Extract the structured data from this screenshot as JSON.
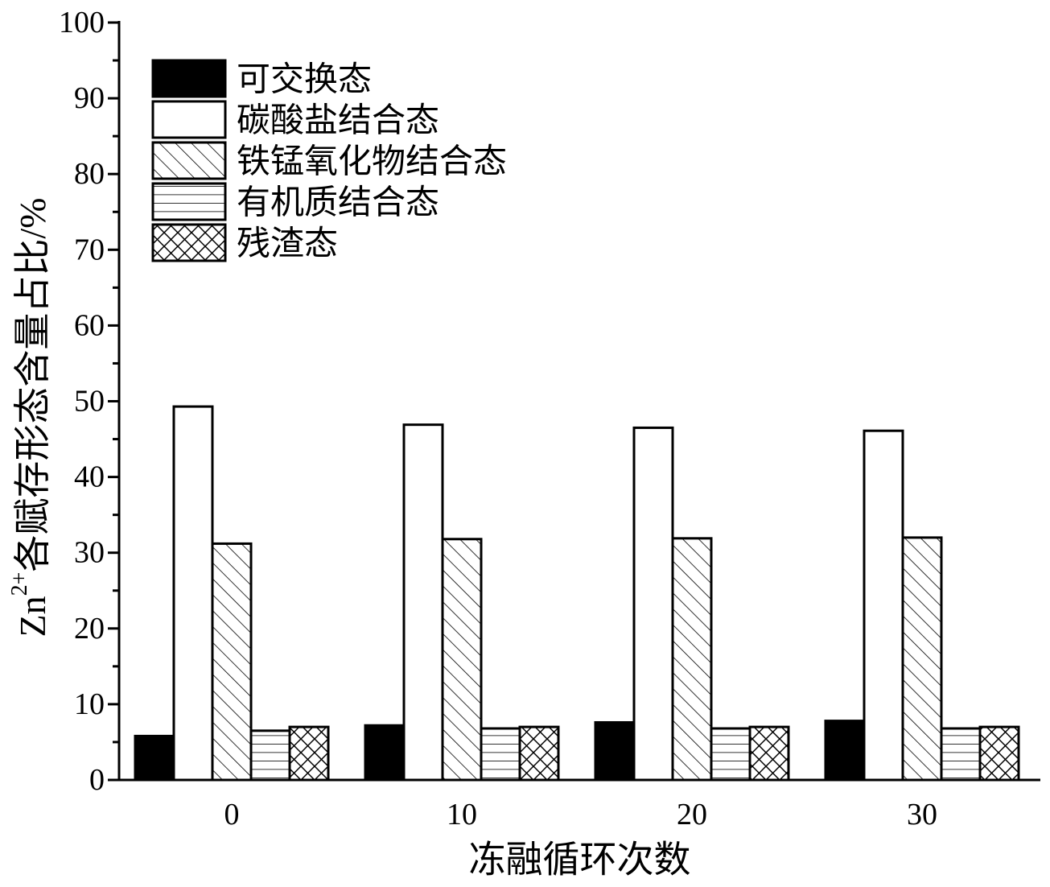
{
  "chart_data": {
    "type": "bar",
    "categories": [
      "0",
      "10",
      "20",
      "30"
    ],
    "series": [
      {
        "name": "可交换态",
        "pattern": "solid",
        "values": [
          5.8,
          7.2,
          7.6,
          7.8
        ]
      },
      {
        "name": "碳酸盐结合态",
        "pattern": "empty",
        "values": [
          49.3,
          46.9,
          46.5,
          46.1
        ]
      },
      {
        "name": "铁锰氧化物结合态",
        "pattern": "diagonal",
        "values": [
          31.2,
          31.8,
          31.9,
          32.0
        ]
      },
      {
        "name": "有机质结合态",
        "pattern": "horizontal",
        "values": [
          6.5,
          6.8,
          6.8,
          6.8
        ]
      },
      {
        "name": "残渣态",
        "pattern": "crosshatch",
        "values": [
          7.0,
          7.0,
          7.0,
          7.0
        ]
      }
    ],
    "xlabel": "冻融循环次数",
    "ylabel": {
      "prefix": "Zn",
      "sup": "2+",
      "suffix": "各赋存形态含量占比/%"
    },
    "ylim": [
      0,
      100
    ],
    "yticks": [
      "0",
      "10",
      "20",
      "30",
      "40",
      "50",
      "60",
      "70",
      "80",
      "90",
      "100"
    ],
    "legend_position": "top-left",
    "colors": {
      "ink": "#000000",
      "fill": "#ffffff"
    }
  }
}
